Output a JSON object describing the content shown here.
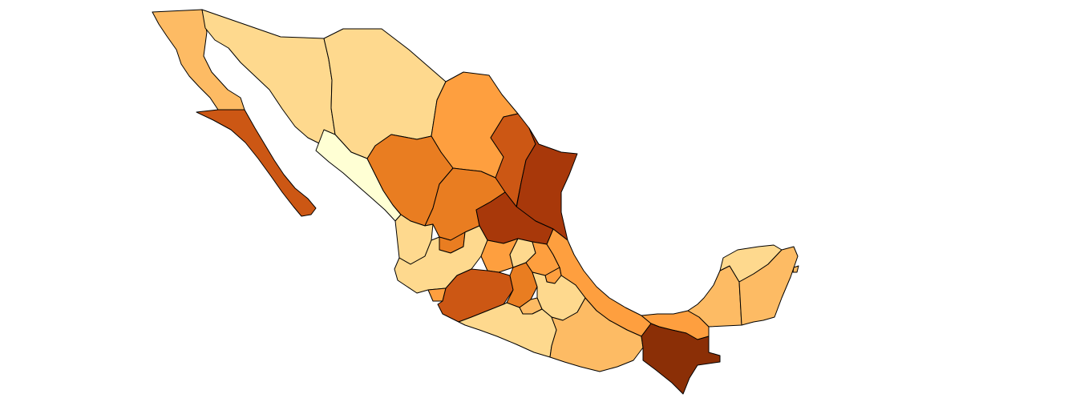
{
  "map": {
    "type": "choropleth",
    "region": "Mexico",
    "units": "states",
    "background_color": "#ffffff",
    "border_color": "#000000",
    "palette": [
      "#ffffd4",
      "#fed98e",
      "#fdbb64",
      "#fe9f3f",
      "#e97d21",
      "#cc5714",
      "#a8380a",
      "#8b2f06"
    ],
    "states": [
      {
        "id": "baja-california",
        "color": "#fdbb64"
      },
      {
        "id": "baja-california-sur",
        "color": "#cc5714"
      },
      {
        "id": "sonora",
        "color": "#fed98e"
      },
      {
        "id": "chihuahua",
        "color": "#fed98e"
      },
      {
        "id": "coahuila",
        "color": "#fe9f3f"
      },
      {
        "id": "nuevo-leon",
        "color": "#cc5714"
      },
      {
        "id": "tamaulipas",
        "color": "#a8380a"
      },
      {
        "id": "sinaloa",
        "color": "#ffffd4"
      },
      {
        "id": "durango",
        "color": "#e97d21"
      },
      {
        "id": "zacatecas",
        "color": "#e97d21"
      },
      {
        "id": "san-luis-potosi",
        "color": "#a8380a"
      },
      {
        "id": "nayarit",
        "color": "#fed98e"
      },
      {
        "id": "aguascalientes",
        "color": "#e97d21"
      },
      {
        "id": "jalisco",
        "color": "#fed98e"
      },
      {
        "id": "guanajuato",
        "color": "#fe9f3f"
      },
      {
        "id": "queretaro",
        "color": "#fed98e"
      },
      {
        "id": "hidalgo",
        "color": "#fe9f3f"
      },
      {
        "id": "veracruz",
        "color": "#fe9f3f"
      },
      {
        "id": "colima",
        "color": "#fe9f3f"
      },
      {
        "id": "michoacan",
        "color": "#cc5714"
      },
      {
        "id": "estado-de-mexico",
        "color": "#e97d21"
      },
      {
        "id": "tlaxcala",
        "color": "#fe9f3f"
      },
      {
        "id": "puebla",
        "color": "#fed98e"
      },
      {
        "id": "morelos",
        "color": "#fdbb64"
      },
      {
        "id": "guerrero",
        "color": "#fed98e"
      },
      {
        "id": "oaxaca",
        "color": "#fdbb64"
      },
      {
        "id": "tabasco",
        "color": "#fe9f3f"
      },
      {
        "id": "chiapas",
        "color": "#8b2f06"
      },
      {
        "id": "campeche",
        "color": "#fdbb64"
      },
      {
        "id": "yucatan",
        "color": "#fed98e"
      },
      {
        "id": "quintana-roo",
        "color": "#fdbb64"
      }
    ]
  }
}
